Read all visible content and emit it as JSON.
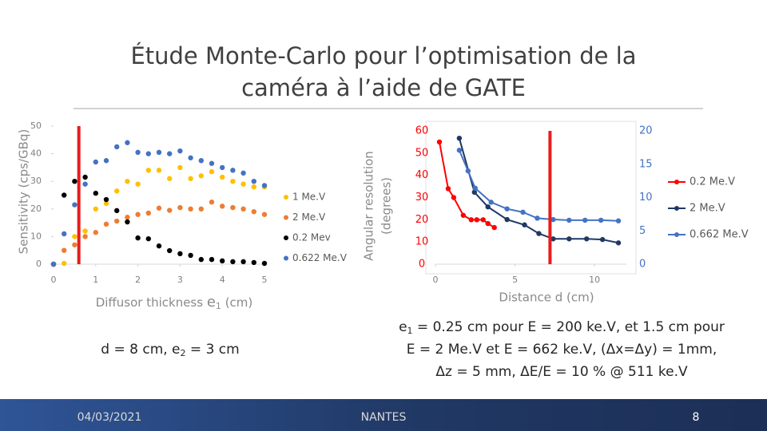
{
  "slide": {
    "title_lines": [
      "Étude Monte-Carlo pour l’optimisation de la",
      "caméra à l’aide de GATE"
    ],
    "left_text": {
      "before": "d = 8 cm,  e",
      "sub": "2",
      "after": " = 3 cm"
    },
    "right_text": {
      "line1_var": "e",
      "line1_sub": "1",
      "line1_rest": " = 0.25 cm pour E = 200 ke.V, et 1.5 cm pour",
      "line2": "E = 2 Me.V et E = 662 ke.V, (Δx=Δy) = 1mm,",
      "line3": "Δz = 5 mm, ΔE/E = 10 % @ 511 ke.V"
    },
    "footer": {
      "date": "04/03/2021",
      "place": "NANTES",
      "page": "8"
    }
  },
  "chart_data": [
    {
      "type": "scatter",
      "ylabel": "Sensitivity (cps/GBq)",
      "xlabel": "Diffusor thickness",
      "xlabel_var": "e",
      "xlabel_sub": "1",
      "xlabel_unit": "(cm)",
      "xlim": [
        0,
        5
      ],
      "xticks": [
        0,
        1,
        2,
        3,
        4,
        5
      ],
      "ylim": [
        0,
        50
      ],
      "yticks": [
        0,
        10,
        20,
        30,
        40,
        50
      ],
      "tick_color": "#7f7f7f",
      "x": [
        0,
        0.25,
        0.5,
        0.75,
        1,
        1.25,
        1.5,
        1.75,
        2,
        2.25,
        2.5,
        2.75,
        3,
        3.25,
        3.5,
        3.75,
        4,
        4.25,
        4.5,
        4.75,
        5
      ],
      "series": [
        {
          "name": "1 Me.V",
          "color": "#ffc000",
          "values": [
            0,
            0.3,
            10,
            12,
            20,
            22,
            26.5,
            30,
            29,
            34,
            34,
            31,
            35,
            31,
            32,
            33.5,
            31.5,
            30,
            29,
            28,
            28
          ]
        },
        {
          "name": "2 Me.V",
          "color": "#ed7d31",
          "values": [
            0,
            5,
            7,
            10,
            11.5,
            14.5,
            15.6,
            17,
            18,
            18.5,
            20.3,
            19.5,
            20.5,
            20,
            20,
            22.5,
            21,
            20.5,
            20,
            19,
            18
          ]
        },
        {
          "name": "0.2 Mev",
          "color": "#000000",
          "values": [
            0,
            25,
            30,
            31.5,
            25.7,
            23.4,
            19.4,
            15.3,
            9.5,
            9.2,
            6.6,
            4.9,
            3.8,
            3.2,
            1.7,
            1.7,
            1.2,
            0.9,
            0.9,
            0.6,
            0.3
          ]
        },
        {
          "name": "0.622 Me.V",
          "color": "#4472c4",
          "values": [
            0,
            11,
            21.5,
            29,
            37,
            37.5,
            42.5,
            44,
            40.5,
            40,
            40.5,
            40,
            41,
            38.5,
            37.5,
            36.5,
            35,
            34,
            33,
            30,
            28.5
          ]
        }
      ],
      "marker_x": 0.6,
      "marker_color": "#e81c1c"
    },
    {
      "type": "line",
      "ylabel": [
        "Angular resolution",
        "(degrees)"
      ],
      "xlabel": "Distance d (cm)",
      "xlim": [
        0,
        12
      ],
      "xticks": [
        0,
        5,
        10
      ],
      "ylim": [
        0,
        60
      ],
      "yticks": [
        0,
        10,
        20,
        30,
        40,
        50,
        60
      ],
      "y2lim": [
        0,
        20
      ],
      "y2ticks": [
        0,
        5,
        10,
        15,
        20
      ],
      "tick_color": "#7f7f7f",
      "ytick_color": "#ff0000",
      "y2tick_color": "#4472c4",
      "series": [
        {
          "name": "0.2 Me.V",
          "color": "#ff0000",
          "axis": "y",
          "x": [
            0.25,
            0.8,
            1.15,
            1.75,
            2.25,
            2.6,
            3,
            3.3,
            3.7
          ],
          "values": [
            55,
            34,
            30,
            22,
            20,
            20,
            20,
            18.3,
            16.5
          ]
        },
        {
          "name": "2 Me.V",
          "color": "#203864",
          "axis": "y2",
          "x": [
            1.5,
            2.45,
            3.3,
            4.5,
            5.6,
            6.5,
            7.4,
            8.4,
            9.5,
            10.5,
            11.5
          ],
          "values": [
            18.9,
            10.8,
            8.6,
            6.7,
            5.9,
            4.6,
            3.8,
            3.8,
            3.8,
            3.7,
            3.2
          ]
        },
        {
          "name": "0.662 Me.V",
          "color": "#4472c4",
          "axis": "y2",
          "x": [
            1.5,
            2.05,
            2.5,
            3.5,
            4.5,
            5.5,
            6.4,
            7.4,
            8.4,
            9.4,
            10.4,
            11.5
          ],
          "values": [
            17.1,
            14,
            11.4,
            9.3,
            8.3,
            7.8,
            6.9,
            6.7,
            6.6,
            6.6,
            6.6,
            6.5
          ]
        }
      ],
      "marker_x": 7.2,
      "marker_color": "#e81c1c"
    }
  ]
}
